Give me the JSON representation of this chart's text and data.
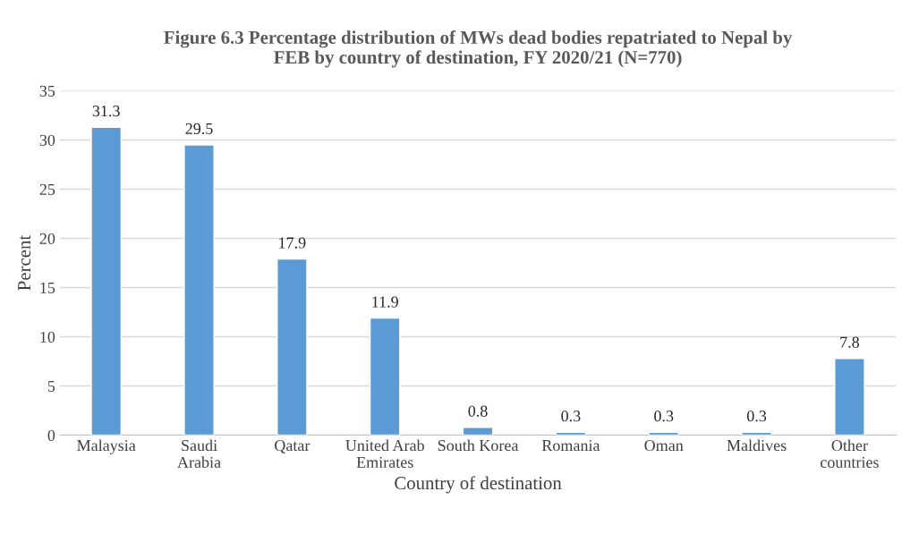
{
  "chart_data": {
    "type": "bar",
    "title": "Figure 6.3 Percentage distribution of MWs dead bodies repatriated to Nepal by\nFEB by country of destination, FY 2020/21 (N=770)",
    "xlabel": "Country of destination",
    "ylabel": "Percent",
    "categories": [
      "Malaysia",
      "Saudi\nArabia",
      "Qatar",
      "United Arab\nEmirates",
      "South Korea",
      "Romania",
      "Oman",
      "Maldives",
      "Other\ncountries"
    ],
    "values": [
      31.3,
      29.5,
      17.9,
      11.9,
      0.8,
      0.3,
      0.3,
      0.3,
      7.8
    ],
    "color": "#5b9bd5",
    "ylim": [
      0,
      35
    ],
    "yticks": [
      0,
      5,
      10,
      15,
      20,
      25,
      30,
      35
    ],
    "grid": "y",
    "data_labels": true
  }
}
